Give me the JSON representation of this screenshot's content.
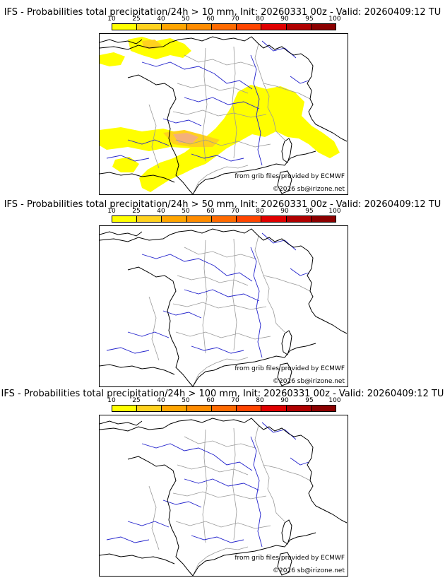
{
  "colorbar": {
    "labels": [
      "10",
      "25",
      "40",
      "50",
      "60",
      "70",
      "80",
      "90",
      "95",
      "100"
    ],
    "colors": [
      "#ffff00",
      "#ffd21e",
      "#ffa500",
      "#ff8c00",
      "#ff6a00",
      "#ff4500",
      "#e00000",
      "#b00000",
      "#8b0000",
      "#5a0000"
    ]
  },
  "panels": [
    {
      "title": "IFS - Probabilities total precipitation/24h > 10 mm, Init: 20260331 00z - Valid: 20260409:12 TU",
      "threshold_mm": 10,
      "source": "from grib files provided by ECMWF",
      "copyright": "©2026 sb@irizone.net"
    },
    {
      "title": "IFS - Probabilities total precipitation/24h > 50 mm, Init: 20260331 00z - Valid: 20260409:12 TU",
      "threshold_mm": 50,
      "source": "from grib files provided by ECMWF",
      "copyright": "©2026 sb@irizone.net"
    },
    {
      "title": "IFS - Probabilities total precipitation/24h > 100 mm, Init: 20260331 00z - Valid: 20260409:12 TU",
      "threshold_mm": 100,
      "source": "from grib files provided by ECMWF",
      "copyright": "©2026 sb@irizone.net"
    }
  ],
  "colors": {
    "coast": "#000000",
    "river": "#2222cc",
    "border": "#999999",
    "rain_low": "#ffff00",
    "rain_mid": "#ffd21e",
    "rain_high": "#f4b07a"
  }
}
